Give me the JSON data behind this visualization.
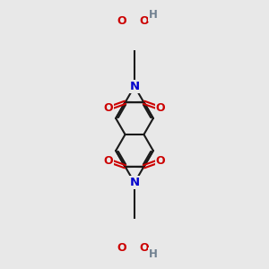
{
  "bg_color": "#e8e8e8",
  "bond_color": "#1a1a1a",
  "oxygen_color": "#cc0000",
  "nitrogen_color": "#0000cc",
  "hydrogen_color": "#708090",
  "bond_width": 1.5,
  "font_size_atom": 8.5,
  "fig_size": [
    3.0,
    3.0
  ],
  "dpi": 100,
  "xlim": [
    -2.2,
    2.2
  ],
  "ylim": [
    -4.5,
    4.5
  ]
}
